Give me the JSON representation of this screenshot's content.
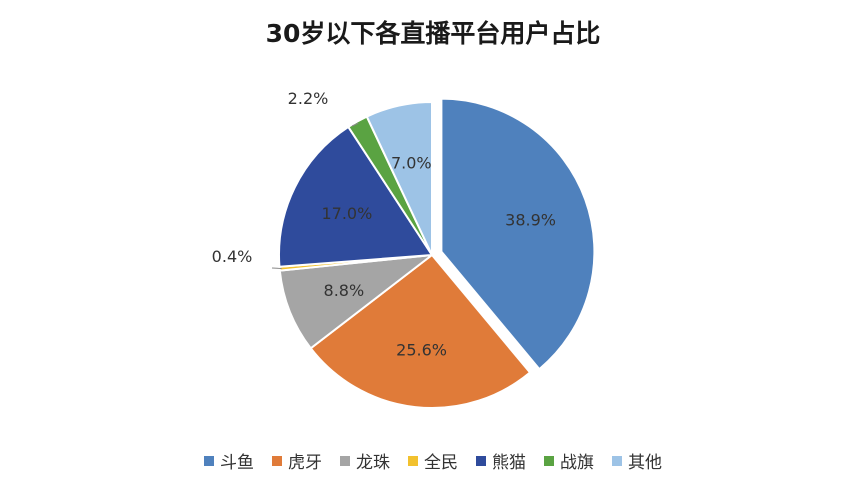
{
  "chart_data": {
    "type": "pie",
    "title": "30岁以下各直播平台用户占比",
    "categories": [
      "斗鱼",
      "虎牙",
      "龙珠",
      "全民",
      "熊猫",
      "战旗",
      "其他"
    ],
    "values": [
      38.9,
      25.6,
      8.8,
      0.4,
      17.0,
      2.2,
      7.0
    ],
    "labels": [
      "38.9%",
      "25.6%",
      "8.8%",
      "0.4%",
      "17.0%",
      "2.2%",
      "7.0%"
    ],
    "colors": [
      "#4f81bd",
      "#e07b39",
      "#a5a5a5",
      "#f2c12e",
      "#2f4b9c",
      "#5aa342",
      "#9dc3e6"
    ],
    "exploded": [
      "斗鱼"
    ],
    "legend": "bottom"
  }
}
